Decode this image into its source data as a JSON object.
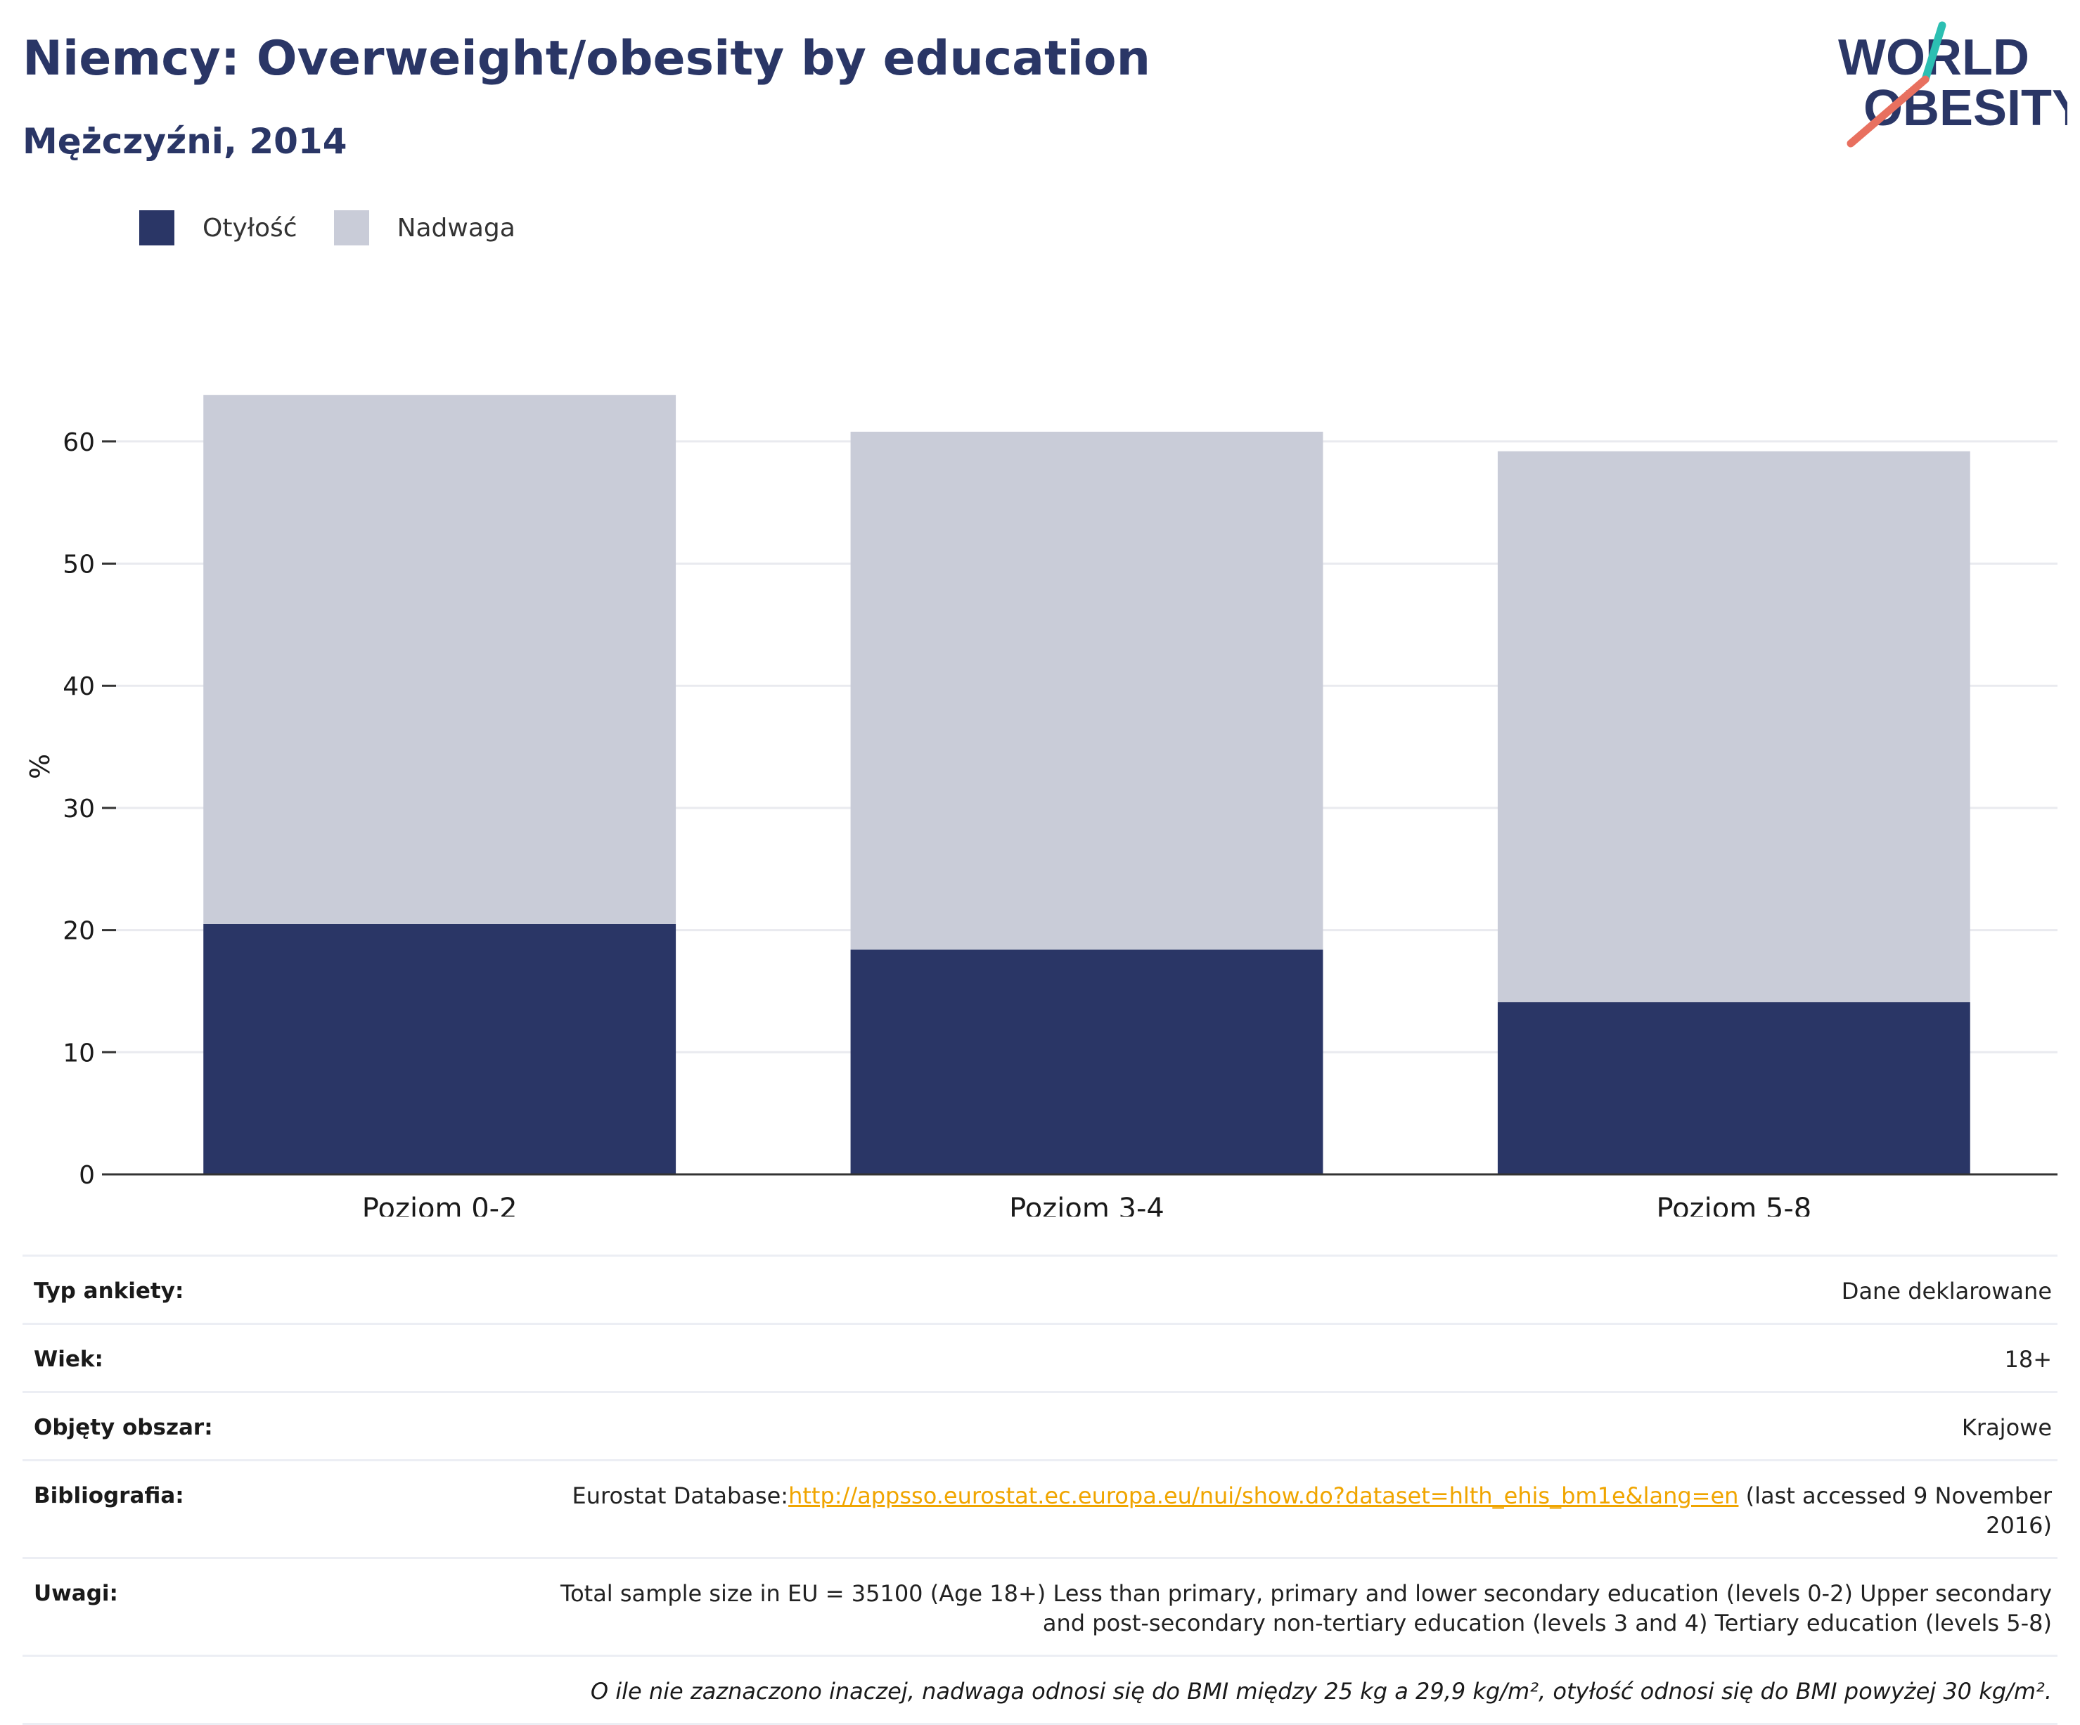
{
  "header": {
    "title": "Niemcy: Overweight/obesity by education",
    "subtitle": "Mężczyźni, 2014"
  },
  "logo": {
    "line1": "WORLD",
    "line2": "OBESITY",
    "colors": {
      "navy": "#2a3666",
      "teal": "#2cbfb2",
      "coral": "#e8705f"
    }
  },
  "colors": {
    "obesity": "#2a3666",
    "overweight": "#c9ccd8",
    "gridline": "#e9eaef",
    "axis": "#333333",
    "link": "#f0a500"
  },
  "chart_data": {
    "type": "bar",
    "stacked": true,
    "categories": [
      "Poziom 0-2",
      "Poziom 3-4",
      "Poziom 5-8"
    ],
    "series": [
      {
        "name": "Otyłość",
        "values": [
          20.5,
          18.4,
          14.1
        ]
      },
      {
        "name": "Nadwaga",
        "values": [
          43.3,
          42.4,
          45.1
        ]
      }
    ],
    "ylabel": "%",
    "ylim": [
      0,
      65
    ],
    "yticks": [
      "0",
      "10",
      "20",
      "30",
      "40",
      "50",
      "60"
    ],
    "grid": true,
    "legend_position": "top-left"
  },
  "metadata": {
    "rows": [
      {
        "label": "Typ ankiety:",
        "value": "Dane deklarowane"
      },
      {
        "label": "Wiek:",
        "value": "18+"
      },
      {
        "label": "Objęty obszar:",
        "value": "Krajowe"
      }
    ],
    "bibliography": {
      "label": "Bibliografia:",
      "prefix": "Eurostat Database:",
      "link": "http://appsso.eurostat.ec.europa.eu/nui/show.do?dataset=hlth_ehis_bm1e&lang=en",
      "suffix": " (last accessed 9 November 2016)"
    },
    "notes": {
      "label": "Uwagi:",
      "value": "Total sample size in EU = 35100 (Age 18+) Less than primary, primary and lower secondary education (levels 0-2) Upper secondary and post-secondary non-tertiary education (levels 3 and 4) Tertiary education (levels 5-8)"
    },
    "footnote": "O ile nie zaznaczono inaczej, nadwaga odnosi się do BMI między 25 kg a 29,9 kg/m², otyłość odnosi się do BMI powyżej 30 kg/m²."
  }
}
